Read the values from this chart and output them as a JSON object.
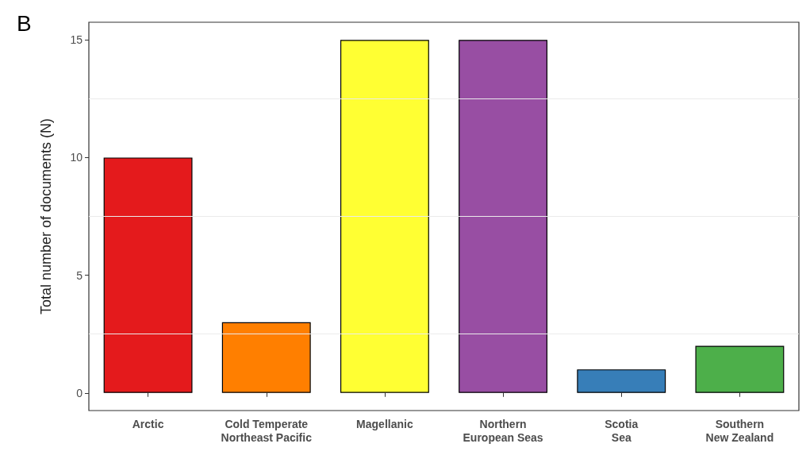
{
  "chart_data": {
    "type": "bar",
    "title": "B",
    "ylabel": "Total number of documents (N)",
    "categories": [
      "Arctic",
      "Cold Temperate\nNortheast Pacific",
      "Magellanic",
      "Northern\nEuropean Seas",
      "Scotia\nSea",
      "Southern\nNew Zealand"
    ],
    "values": [
      10,
      3,
      15,
      15,
      1,
      2
    ],
    "colors": [
      "#e41a1c",
      "#ff7f00",
      "#ffff33",
      "#984ea3",
      "#377eb8",
      "#4daf4a"
    ],
    "ylim": [
      -0.75,
      15.75
    ],
    "yticks": [
      0,
      5,
      10,
      15
    ],
    "grid": "y"
  }
}
